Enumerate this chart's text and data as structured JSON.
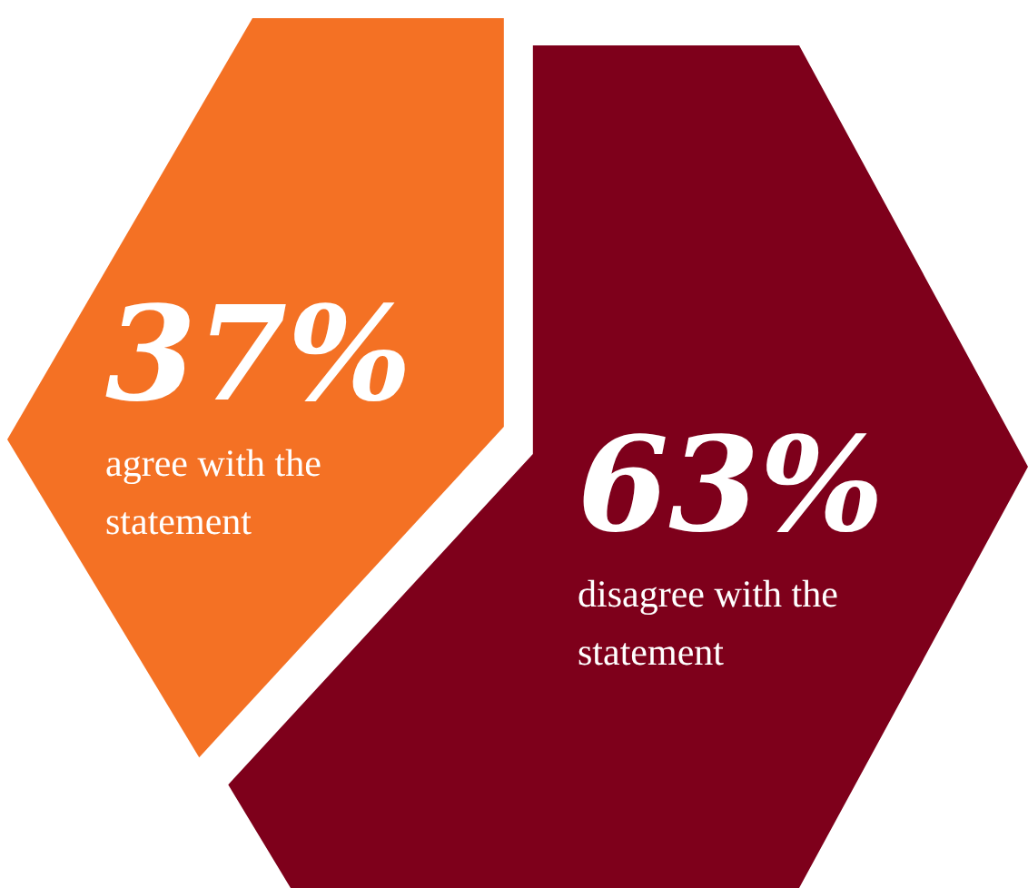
{
  "chart_data": {
    "type": "other",
    "categories": [
      "agree with the statement",
      "disagree with the statement"
    ],
    "values": [
      37,
      63
    ],
    "value_labels": [
      "37%",
      "63%"
    ],
    "colors": [
      "#f47124",
      "#7e001b"
    ]
  }
}
